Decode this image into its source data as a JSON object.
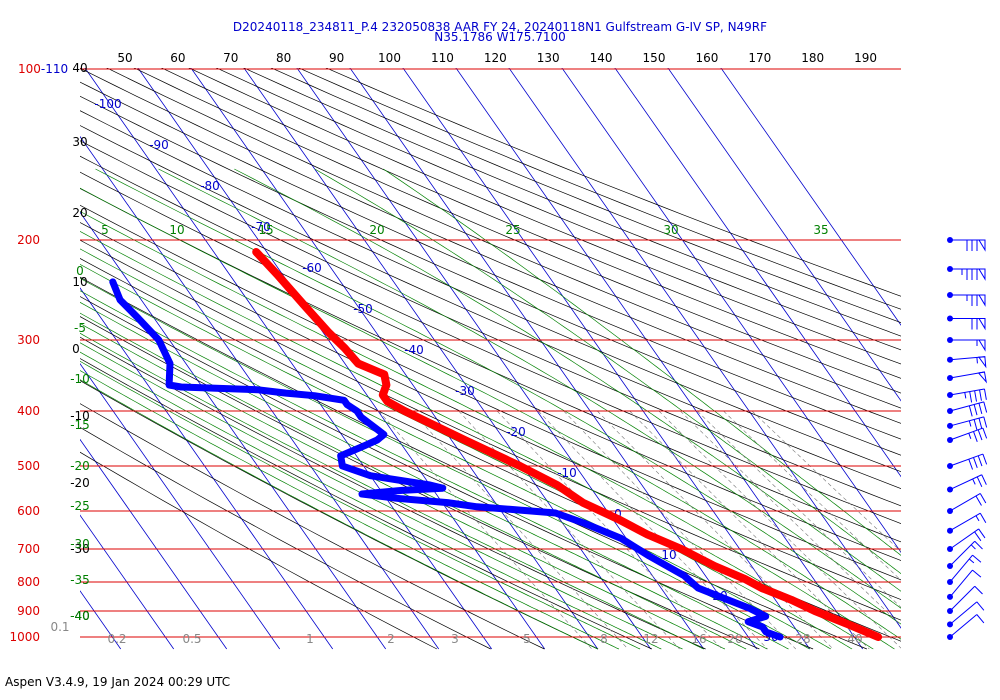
{
  "title_line1": "D20240118_234811_P.4 232050838 AAR FY 24, 20240118N1 Gulfstream G-IV SP, N49RF",
  "title_line2": "N35.1786 W175.7100",
  "footer": "Aspen V3.4.9, 19 Jan 2024  00:29 UTC",
  "colors": {
    "pressure": "#dd0000",
    "isotherm": "#0000cc",
    "dry_adiabat": "#000000",
    "moist_adiabat": "#008000",
    "mixing_ratio": "#777777",
    "temperature": "#ff0000",
    "dewpoint": "#0000ff",
    "wind_barb": "#0000ff"
  },
  "chart_data": {
    "type": "line",
    "chart_kind": "Skew-T log-P",
    "pressure_levels_hpa": [
      100,
      200,
      300,
      400,
      500,
      600,
      700,
      800,
      900,
      1000
    ],
    "pressure_labels": [
      "100-110",
      "200",
      "300",
      "400",
      "500",
      "600",
      "700",
      "800",
      "900",
      "1000"
    ],
    "top_theta_labels": [
      "50",
      "60",
      "70",
      "80",
      "90",
      "100",
      "110",
      "120",
      "130",
      "140",
      "150",
      "160",
      "170",
      "180",
      "190"
    ],
    "isotherm_labels": [
      "-100",
      "-90",
      "-80",
      "-70",
      "-60",
      "-50",
      "-40",
      "-30",
      "-20",
      "-10",
      "0",
      "10",
      "20",
      "30"
    ],
    "height_labels": [
      "40",
      "30",
      "20",
      "10",
      "0",
      "-10",
      "-20",
      "-30",
      "-40"
    ],
    "theta_e_labels": [
      "5",
      "10",
      "15",
      "20",
      "25",
      "30",
      "35"
    ],
    "left_green_labels": [
      "0",
      "-5",
      "-10",
      "-15",
      "-20",
      "-25",
      "-30",
      "-35",
      "-40"
    ],
    "mixing_ratio_labels": [
      "0.1",
      "0.2",
      "0.5",
      "1",
      "2",
      "3",
      "5",
      "8",
      "12",
      "16",
      "20",
      "28",
      "40"
    ],
    "series": [
      {
        "name": "Temperature",
        "points": [
          [
            210,
            -52
          ],
          [
            230,
            -51
          ],
          [
            260,
            -50
          ],
          [
            290,
            -49
          ],
          [
            310,
            -48
          ],
          [
            330,
            -47.5
          ],
          [
            345,
            -44
          ],
          [
            360,
            -45
          ],
          [
            375,
            -47
          ],
          [
            385,
            -47
          ],
          [
            400,
            -45
          ],
          [
            450,
            -37.5
          ],
          [
            500,
            -30.5
          ],
          [
            540,
            -26
          ],
          [
            580,
            -23.5
          ],
          [
            620,
            -19
          ],
          [
            660,
            -15.5
          ],
          [
            700,
            -11
          ],
          [
            750,
            -7
          ],
          [
            790,
            -3
          ],
          [
            820,
            -1
          ],
          [
            860,
            3
          ],
          [
            900,
            6
          ],
          [
            950,
            10.5
          ],
          [
            1000,
            14.5
          ]
        ]
      },
      {
        "name": "Dewpoint",
        "points": [
          [
            237,
            -83
          ],
          [
            255,
            -84
          ],
          [
            275,
            -83
          ],
          [
            300,
            -82
          ],
          [
            330,
            -83
          ],
          [
            360,
            -86
          ],
          [
            363,
            -84
          ],
          [
            367,
            -70
          ],
          [
            372,
            -65
          ],
          [
            376,
            -60
          ],
          [
            383,
            -55
          ],
          [
            390,
            -55
          ],
          [
            400,
            -54
          ],
          [
            410,
            -54
          ],
          [
            440,
            -52
          ],
          [
            450,
            -54
          ],
          [
            460,
            -57
          ],
          [
            480,
            -63
          ],
          [
            500,
            -64
          ],
          [
            520,
            -60
          ],
          [
            540,
            -50
          ],
          [
            547,
            -48
          ],
          [
            552,
            -56
          ],
          [
            560,
            -64
          ],
          [
            570,
            -58
          ],
          [
            580,
            -49
          ],
          [
            590,
            -44
          ],
          [
            598,
            -36
          ],
          [
            605,
            -30
          ],
          [
            630,
            -26
          ],
          [
            670,
            -21
          ],
          [
            720,
            -18
          ],
          [
            780,
            -14
          ],
          [
            820,
            -13
          ],
          [
            860,
            -9
          ],
          [
            890,
            -6
          ],
          [
            920,
            -4
          ],
          [
            940,
            -8
          ],
          [
            960,
            -6
          ],
          [
            980,
            -6
          ],
          [
            1000,
            -4
          ]
        ]
      }
    ],
    "wind_barbs": [
      {
        "p": 200,
        "dir": 270,
        "kt": 80
      },
      {
        "p": 225,
        "dir": 270,
        "kt": 85
      },
      {
        "p": 250,
        "dir": 270,
        "kt": 75
      },
      {
        "p": 275,
        "dir": 270,
        "kt": 70
      },
      {
        "p": 300,
        "dir": 270,
        "kt": 55
      },
      {
        "p": 325,
        "dir": 265,
        "kt": 55
      },
      {
        "p": 350,
        "dir": 260,
        "kt": 50
      },
      {
        "p": 375,
        "dir": 260,
        "kt": 45
      },
      {
        "p": 400,
        "dir": 255,
        "kt": 40
      },
      {
        "p": 425,
        "dir": 255,
        "kt": 35
      },
      {
        "p": 450,
        "dir": 250,
        "kt": 35
      },
      {
        "p": 500,
        "dir": 250,
        "kt": 40
      },
      {
        "p": 550,
        "dir": 245,
        "kt": 25
      },
      {
        "p": 600,
        "dir": 240,
        "kt": 20
      },
      {
        "p": 650,
        "dir": 240,
        "kt": 15
      },
      {
        "p": 700,
        "dir": 235,
        "kt": 20
      },
      {
        "p": 750,
        "dir": 225,
        "kt": 15
      },
      {
        "p": 800,
        "dir": 220,
        "kt": 15
      },
      {
        "p": 850,
        "dir": 220,
        "kt": 10
      },
      {
        "p": 900,
        "dir": 225,
        "kt": 10
      },
      {
        "p": 950,
        "dir": 230,
        "kt": 10
      },
      {
        "p": 1000,
        "dir": 230,
        "kt": 10
      }
    ],
    "grid": true
  }
}
